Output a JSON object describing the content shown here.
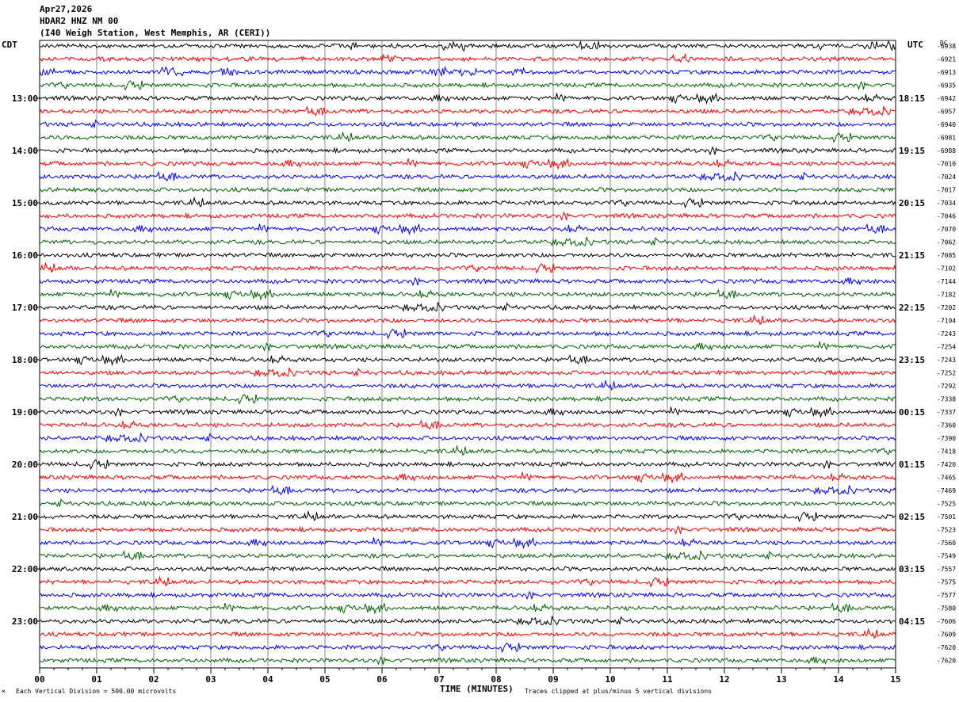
{
  "header": {
    "date": "Apr27,2026",
    "station": "HDAR2 HNZ NM 00",
    "location": "(I40 Weigh Station, West Memphis, AR (CERI))"
  },
  "labels": {
    "left_tz": "CDT",
    "right_tz": "UTC",
    "dc_head": "DC",
    "x_title": "TIME (MINUTES)",
    "scale_note": "Each Vertical Division =  500.00 microvolts",
    "clip_note": "Traces clipped at plus/minus 5 vertical divisions"
  },
  "colors": {
    "trace_cycle": [
      "#000000",
      "#ff0000",
      "#0000ff",
      "#006400"
    ],
    "grid": "#888888"
  },
  "chart_data": {
    "type": "line",
    "title": "HDAR2 HNZ NM 00",
    "xlabel": "TIME (MINUTES)",
    "xlim": [
      0,
      15
    ],
    "x_ticks": [
      "00",
      "01",
      "02",
      "03",
      "04",
      "05",
      "06",
      "07",
      "08",
      "09",
      "10",
      "11",
      "12",
      "13",
      "14",
      "15"
    ],
    "left_hour_labels": [
      "13:00",
      "14:00",
      "15:00",
      "16:00",
      "17:00",
      "18:00",
      "19:00",
      "20:00",
      "21:00",
      "22:00",
      "23:00"
    ],
    "right_hour_labels": [
      "18:15",
      "19:15",
      "20:15",
      "21:15",
      "22:15",
      "23:15",
      "00:15",
      "01:15",
      "02:15",
      "03:15",
      "04:15"
    ],
    "dc_offsets": [
      "-6938",
      "-6921",
      "-6913",
      "-6935",
      "-6942",
      "-6957",
      "-6940",
      "-6981",
      "-6988",
      "-7010",
      "-7024",
      "-7017",
      "-7034",
      "-7046",
      "-7070",
      "-7062",
      "-7085",
      "-7102",
      "-7144",
      "-7182",
      "-7202",
      "-7194",
      "-7243",
      "-7254",
      "-7243",
      "-7252",
      "-7292",
      "-7338",
      "-7337",
      "-7360",
      "-7390",
      "-7418",
      "-7420",
      "-7465",
      "-7469",
      "-7525",
      "-7501",
      "-7523",
      "-7560",
      "-7549",
      "-7557",
      "-7575",
      "-7577",
      "-7580",
      "-7606",
      "-7609",
      "-7620",
      "-7620"
    ],
    "series_count": 48,
    "grid": true
  }
}
